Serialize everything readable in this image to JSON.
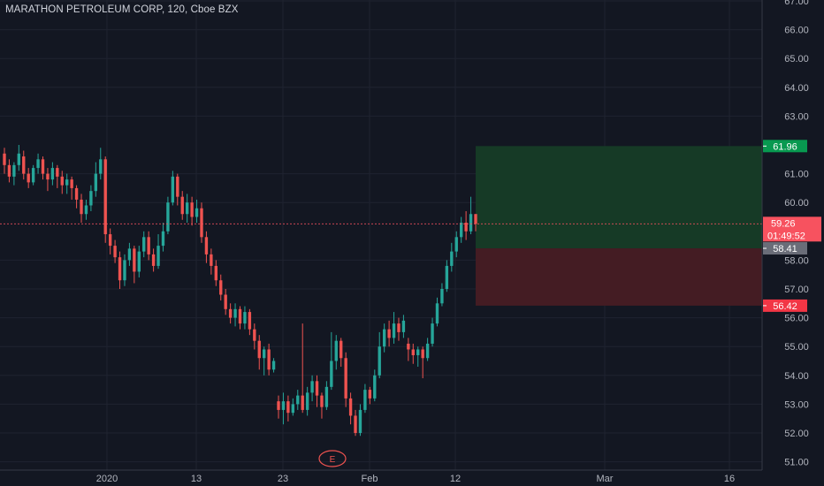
{
  "header": {
    "title": "MARATHON PETROLEUM CORP, 120, Cboe BZX"
  },
  "price_axis": {
    "ticks": [
      "67.00",
      "66.00",
      "65.00",
      "64.00",
      "63.00",
      "61.00",
      "60.00",
      "58.00",
      "57.00",
      "56.00",
      "55.00",
      "54.00",
      "53.00",
      "52.00",
      "51.00"
    ]
  },
  "time_axis": {
    "ticks": [
      "2020",
      "13",
      "23",
      "Feb",
      "12",
      "Mar",
      "16"
    ]
  },
  "labels": {
    "take_profit": "61.96",
    "last_price": "59.26",
    "countdown": "01:49:52",
    "entry": "58.41",
    "stop_loss": "56.42",
    "earnings": "E"
  },
  "colors": {
    "background": "#131722",
    "up": "#26a69a",
    "down": "#ef5350",
    "profit_zone": "#163a26",
    "loss_zone": "#441c23",
    "take_profit_tag": "#089950",
    "stop_loss_tag": "#f23645",
    "entry_tag": "#6a6d78",
    "last_price_tag": "#f7525f"
  },
  "chart_data": {
    "type": "candlestick",
    "y_range": [
      50.9,
      67.1
    ],
    "x_labels": [
      "2020",
      "13",
      "23",
      "Feb",
      "12",
      "Mar",
      "16"
    ],
    "last_price": 59.26,
    "position": {
      "take_profit": 61.96,
      "entry": 58.41,
      "stop_loss": 56.42
    },
    "candles": [
      [
        61.7,
        61.3,
        61.9,
        61.0
      ],
      [
        61.3,
        60.9,
        61.5,
        60.7
      ],
      [
        60.9,
        61.3,
        61.4,
        60.6
      ],
      [
        61.3,
        61.7,
        62.0,
        61.1
      ],
      [
        61.6,
        61.0,
        61.8,
        60.8
      ],
      [
        61.0,
        60.7,
        61.2,
        60.5
      ],
      [
        60.7,
        61.2,
        61.3,
        60.6
      ],
      [
        61.2,
        61.5,
        61.7,
        61.0
      ],
      [
        61.5,
        61.0,
        61.6,
        60.8
      ],
      [
        61.0,
        60.8,
        61.2,
        60.4
      ],
      [
        60.8,
        61.2,
        61.4,
        60.6
      ],
      [
        61.2,
        60.9,
        61.3,
        60.5
      ],
      [
        60.9,
        60.6,
        61.1,
        60.3
      ],
      [
        60.6,
        60.8,
        61.0,
        60.3
      ],
      [
        60.8,
        60.5,
        60.9,
        60.1
      ],
      [
        60.5,
        60.1,
        60.6,
        59.8
      ],
      [
        60.1,
        59.6,
        60.3,
        59.3
      ],
      [
        59.6,
        59.9,
        60.1,
        59.4
      ],
      [
        59.9,
        60.4,
        60.6,
        59.7
      ],
      [
        60.4,
        61.0,
        61.4,
        60.2
      ],
      [
        61.0,
        61.5,
        61.9,
        60.8
      ],
      [
        61.5,
        58.9,
        61.6,
        58.6
      ],
      [
        58.9,
        58.5,
        59.1,
        58.2
      ],
      [
        58.5,
        58.1,
        58.7,
        57.9
      ],
      [
        58.1,
        57.3,
        58.3,
        57.0
      ],
      [
        57.3,
        58.0,
        58.2,
        57.1
      ],
      [
        58.0,
        58.4,
        58.6,
        57.8
      ],
      [
        58.4,
        57.6,
        58.5,
        57.2
      ],
      [
        57.6,
        58.3,
        58.5,
        57.4
      ],
      [
        58.3,
        58.8,
        59.0,
        58.1
      ],
      [
        58.8,
        58.2,
        59.0,
        58.0
      ],
      [
        58.2,
        57.8,
        58.4,
        57.6
      ],
      [
        57.8,
        58.5,
        58.9,
        57.7
      ],
      [
        58.5,
        59.0,
        59.3,
        58.3
      ],
      [
        59.0,
        60.0,
        60.2,
        58.9
      ],
      [
        60.0,
        60.9,
        61.1,
        59.9
      ],
      [
        60.9,
        60.2,
        61.0,
        59.9
      ],
      [
        60.2,
        59.6,
        60.4,
        59.4
      ],
      [
        59.6,
        60.0,
        60.3,
        59.3
      ],
      [
        60.0,
        59.5,
        60.2,
        59.2
      ],
      [
        59.5,
        59.8,
        60.1,
        59.3
      ],
      [
        59.8,
        58.8,
        60.0,
        58.6
      ],
      [
        58.8,
        58.2,
        59.0,
        57.9
      ],
      [
        58.2,
        57.8,
        58.4,
        57.5
      ],
      [
        57.8,
        57.3,
        58.0,
        57.1
      ],
      [
        57.3,
        56.8,
        57.5,
        56.6
      ],
      [
        56.8,
        56.3,
        57.0,
        56.1
      ],
      [
        56.3,
        56.0,
        56.5,
        55.8
      ],
      [
        56.0,
        56.3,
        56.5,
        55.7
      ],
      [
        56.3,
        55.8,
        56.4,
        55.6
      ],
      [
        55.8,
        56.2,
        56.4,
        55.6
      ],
      [
        56.2,
        55.6,
        56.3,
        55.4
      ],
      [
        55.6,
        55.2,
        55.8,
        54.9
      ],
      [
        55.2,
        54.6,
        55.4,
        54.2
      ],
      [
        54.6,
        54.9,
        55.0,
        54.0
      ],
      [
        54.9,
        54.2,
        55.1,
        54.0
      ],
      [
        54.2,
        54.5,
        54.6,
        54.1
      ],
      [
        53.1,
        52.8,
        53.3,
        52.5
      ],
      [
        52.8,
        53.1,
        53.4,
        52.3
      ],
      [
        53.1,
        52.7,
        53.3,
        52.4
      ],
      [
        52.7,
        53.0,
        53.2,
        52.6
      ],
      [
        53.0,
        53.3,
        53.5,
        52.8
      ],
      [
        53.3,
        52.8,
        55.8,
        52.7
      ],
      [
        52.8,
        53.4,
        53.6,
        52.6
      ],
      [
        53.4,
        53.8,
        54.0,
        53.1
      ],
      [
        53.8,
        53.3,
        54.0,
        52.9
      ],
      [
        53.3,
        52.9,
        53.4,
        52.5
      ],
      [
        52.9,
        53.6,
        53.8,
        52.8
      ],
      [
        53.6,
        54.5,
        55.5,
        53.5
      ],
      [
        54.5,
        55.2,
        55.4,
        54.2
      ],
      [
        55.2,
        54.6,
        55.3,
        54.3
      ],
      [
        54.6,
        53.2,
        54.8,
        52.9
      ],
      [
        53.2,
        52.6,
        53.4,
        52.3
      ],
      [
        52.6,
        52.0,
        52.8,
        51.9
      ],
      [
        52.0,
        52.8,
        53.0,
        51.9
      ],
      [
        52.8,
        53.5,
        53.7,
        52.7
      ],
      [
        53.5,
        53.2,
        53.6,
        53.0
      ],
      [
        53.2,
        54.0,
        54.2,
        53.1
      ],
      [
        54.0,
        55.0,
        55.5,
        53.9
      ],
      [
        55.0,
        55.6,
        55.8,
        54.8
      ],
      [
        55.6,
        55.3,
        55.9,
        55.0
      ],
      [
        55.3,
        55.8,
        56.2,
        55.1
      ],
      [
        55.8,
        55.5,
        56.0,
        55.2
      ],
      [
        55.5,
        55.9,
        56.1,
        55.3
      ],
      [
        55.1,
        54.9,
        55.3,
        54.5
      ],
      [
        54.9,
        54.7,
        55.1,
        54.4
      ],
      [
        54.7,
        54.9,
        55.0,
        54.3
      ],
      [
        54.9,
        54.6,
        55.0,
        53.9
      ],
      [
        54.6,
        55.1,
        55.3,
        54.5
      ],
      [
        55.1,
        55.8,
        56.0,
        55.0
      ],
      [
        55.8,
        56.5,
        56.7,
        55.7
      ],
      [
        56.5,
        57.0,
        57.2,
        56.4
      ],
      [
        57.0,
        57.8,
        58.0,
        56.9
      ],
      [
        57.8,
        58.3,
        58.6,
        57.6
      ],
      [
        58.3,
        58.8,
        59.0,
        58.1
      ],
      [
        58.8,
        59.3,
        59.5,
        58.6
      ],
      [
        59.3,
        59.0,
        59.7,
        58.7
      ],
      [
        59.0,
        59.6,
        60.2,
        58.9
      ],
      [
        59.6,
        59.26,
        59.6,
        59.0
      ]
    ]
  }
}
